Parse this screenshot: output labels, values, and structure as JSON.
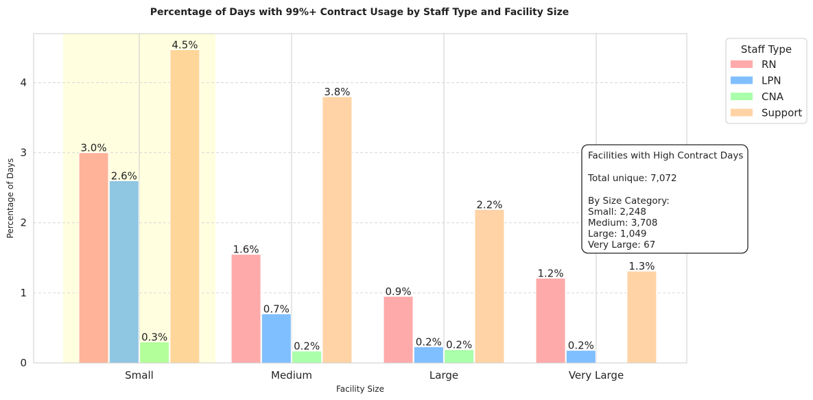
{
  "chart_data": {
    "type": "bar",
    "title": "Percentage of Days with 99%+ Contract Usage by Staff Type and Facility Size",
    "xlabel": "Facility Size",
    "ylabel": "Percentage of Days",
    "ylim": [
      0,
      4.7
    ],
    "yticks": [
      "0",
      "1",
      "2",
      "3",
      "4"
    ],
    "categories": [
      "Small",
      "Medium",
      "Large",
      "Very Large"
    ],
    "highlighted_category": "Small",
    "series": [
      {
        "name": "RN",
        "color": "#ffaaaa",
        "values": [
          3.0,
          1.55,
          0.95,
          1.21
        ],
        "labels": [
          "3.0%",
          "1.6%",
          "0.9%",
          "1.2%"
        ]
      },
      {
        "name": "LPN",
        "color": "#80bfff",
        "values": [
          2.6,
          0.7,
          0.23,
          0.18
        ],
        "labels": [
          "2.6%",
          "0.7%",
          "0.2%",
          "0.2%"
        ]
      },
      {
        "name": "CNA",
        "color": "#aaffaa",
        "values": [
          0.3,
          0.17,
          0.19,
          0.0
        ],
        "labels": [
          "0.3%",
          "0.2%",
          "0.2%",
          ""
        ]
      },
      {
        "name": "Support",
        "color": "#ffd3a5",
        "values": [
          4.47,
          3.8,
          2.19,
          1.31
        ],
        "labels": [
          "4.5%",
          "3.8%",
          "2.2%",
          "1.3%"
        ]
      }
    ],
    "highlight_overrides": {
      "RN": "#ffb399",
      "LPN": "#8fc6e2",
      "CNA": "#b3ff99",
      "Support": "#ffd699"
    },
    "legend": {
      "title": "Staff Type",
      "placement": "outside-top-right"
    },
    "grid": "y-dashed",
    "annotation": {
      "title": "Facilities with High Contract Days",
      "total": "Total unique: 7,072",
      "heading": "By Size Category:",
      "lines": [
        "Small: 2,248",
        "Medium: 3,708",
        "Large: 1,049",
        "Very Large: 67"
      ]
    }
  }
}
